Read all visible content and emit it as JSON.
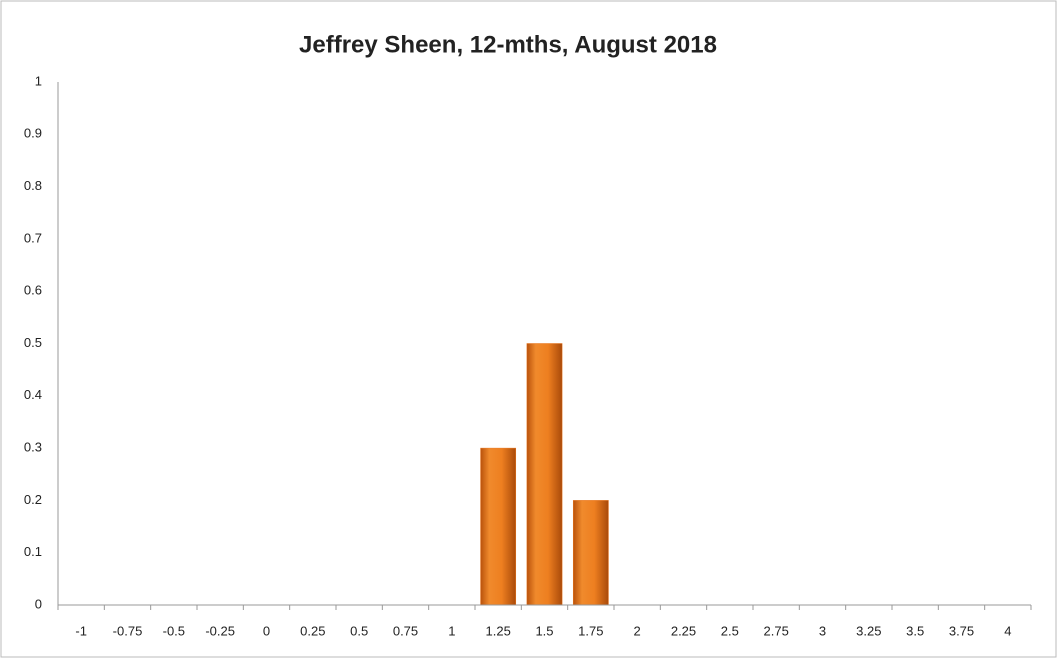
{
  "chart_data": {
    "type": "bar",
    "title": "Jeffrey Sheen, 12-mths, August 2018",
    "categories": [
      "-1",
      "-0.75",
      "-0.5",
      "-0.25",
      "0",
      "0.25",
      "0.5",
      "0.75",
      "1",
      "1.25",
      "1.5",
      "1.75",
      "2",
      "2.25",
      "2.5",
      "2.75",
      "3",
      "3.25",
      "3.5",
      "3.75",
      "4"
    ],
    "values": [
      0,
      0,
      0,
      0,
      0,
      0,
      0,
      0,
      0,
      0.3,
      0.5,
      0.2,
      0,
      0,
      0,
      0,
      0,
      0,
      0,
      0,
      0
    ],
    "color": "#e8741c",
    "ylim": [
      0,
      1
    ],
    "yticks": [
      0,
      0.1,
      0.2,
      0.3,
      0.4,
      0.5,
      0.6,
      0.7,
      0.8,
      0.9,
      1
    ],
    "grid": false
  }
}
